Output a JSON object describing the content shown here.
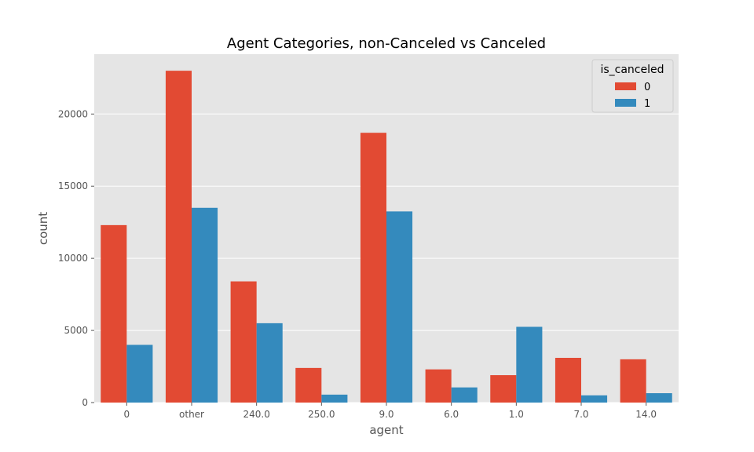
{
  "chart_data": {
    "type": "bar",
    "title": "Agent Categories, non-Canceled vs Canceled",
    "xlabel": "agent",
    "ylabel": "count",
    "categories": [
      "0",
      "other",
      "240.0",
      "250.0",
      "9.0",
      "6.0",
      "1.0",
      "7.0",
      "14.0"
    ],
    "series": [
      {
        "name": "0",
        "color": "#E24A33",
        "values": [
          12300,
          23000,
          8400,
          2400,
          18700,
          2300,
          1900,
          3100,
          3000
        ]
      },
      {
        "name": "1",
        "color": "#348ABD",
        "values": [
          4000,
          13500,
          5500,
          550,
          13250,
          1050,
          5250,
          500,
          650
        ]
      }
    ],
    "ylim": [
      0,
      24150
    ],
    "yticks": [
      0,
      5000,
      10000,
      15000,
      20000
    ],
    "grid": true,
    "legend": {
      "title": "is_canceled",
      "placement": "top-right"
    },
    "plot_background": "#E5E5E5"
  }
}
